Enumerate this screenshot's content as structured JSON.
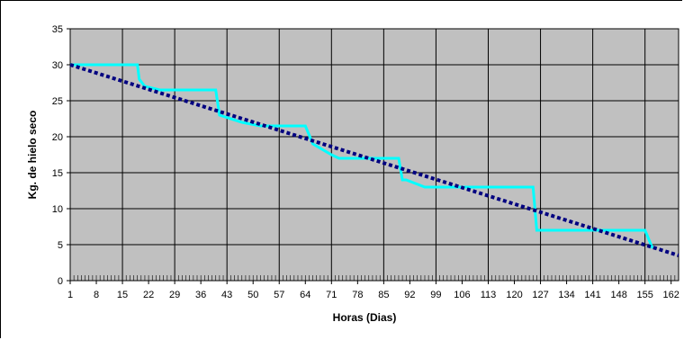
{
  "chart_data": {
    "type": "line",
    "title": "",
    "xlabel": "Horas (Dias)",
    "ylabel": "Kg. de hielo seco",
    "x_ticks": [
      "1",
      "8",
      "15",
      "22",
      "29",
      "36",
      "43",
      "50",
      "57",
      "64",
      "71",
      "78",
      "85",
      "92",
      "99",
      "106",
      "113",
      "120",
      "127",
      "134",
      "141",
      "148",
      "155",
      "162"
    ],
    "xlim": [
      1,
      164
    ],
    "ylim": [
      0,
      35
    ],
    "y_ticks": [
      "0",
      "5",
      "10",
      "15",
      "20",
      "25",
      "30",
      "35"
    ],
    "grid": true,
    "plot_bg": "#c0c0c0",
    "series": [
      {
        "color": "#00ffff",
        "style": "solid",
        "x": [
          1,
          19,
          19.5,
          21,
          25,
          26,
          40,
          41,
          47,
          52,
          64,
          66,
          71,
          73,
          89,
          90,
          91,
          96,
          98,
          125,
          126,
          127,
          155,
          157
        ],
        "y": [
          30,
          30,
          28,
          27,
          26.5,
          26.5,
          26.5,
          23,
          22,
          21.5,
          21.5,
          19,
          17.5,
          17,
          17,
          14,
          14,
          13,
          13,
          13,
          7,
          7,
          7,
          4.5
        ]
      },
      {
        "color": "#000080",
        "style": "dotted",
        "x": [
          1,
          164
        ],
        "y": [
          30,
          3.5
        ]
      }
    ]
  }
}
